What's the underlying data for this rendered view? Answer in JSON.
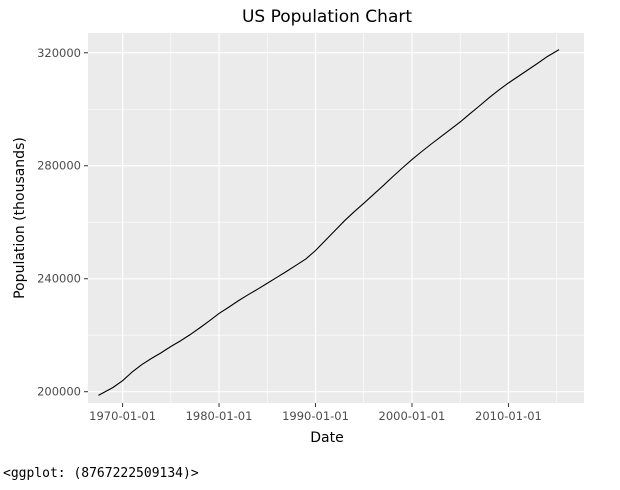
{
  "chart_data": {
    "type": "line",
    "title": "US Population Chart",
    "xlabel": "Date",
    "ylabel": "Population (thousands)",
    "x_tick_labels": [
      "1970-01-01",
      "1980-01-01",
      "1990-01-01",
      "2000-01-01",
      "2010-01-01"
    ],
    "y_tick_labels": [
      "200000",
      "240000",
      "280000",
      "320000"
    ],
    "xlim": [
      "1966-06-01",
      "2017-11-01"
    ],
    "ylim": [
      196000,
      327000
    ],
    "grid": true,
    "colors": {
      "panel": "#EBEBEB",
      "grid_major": "#FFFFFF",
      "line": "#000000",
      "tick_text": "#4D4D4D",
      "tick_mark": "#333333"
    },
    "series": [
      {
        "x": [
          "1967-07-01",
          "1969-01-01",
          "1970-01-01",
          "1971-01-01",
          "1972-01-01",
          "1973-01-01",
          "1974-01-01",
          "1975-01-01",
          "1976-01-01",
          "1977-01-01",
          "1978-01-01",
          "1979-01-01",
          "1980-01-01",
          "1981-01-01",
          "1982-01-01",
          "1983-01-01",
          "1984-01-01",
          "1985-01-01",
          "1986-01-01",
          "1987-01-01",
          "1988-01-01",
          "1989-01-01",
          "1990-01-01",
          "1991-01-01",
          "1992-01-01",
          "1993-01-01",
          "1994-01-01",
          "1995-01-01",
          "1996-01-01",
          "1997-01-01",
          "1998-01-01",
          "1999-01-01",
          "2000-01-01",
          "2001-01-01",
          "2002-01-01",
          "2003-01-01",
          "2004-01-01",
          "2005-01-01",
          "2006-01-01",
          "2007-01-01",
          "2008-01-01",
          "2009-01-01",
          "2010-01-01",
          "2011-01-01",
          "2012-01-01",
          "2013-01-01",
          "2014-01-01",
          "2015-04-01"
        ],
        "y": [
          198700,
          201500,
          203900,
          207000,
          209600,
          211800,
          213800,
          216000,
          218000,
          220200,
          222600,
          225100,
          227700,
          229900,
          232200,
          234300,
          236300,
          238400,
          240500,
          242600,
          244800,
          247000,
          250000,
          253500,
          257000,
          260500,
          263700,
          266700,
          269800,
          272900,
          276100,
          279200,
          282200,
          285000,
          287700,
          290300,
          292900,
          295500,
          298400,
          301200,
          304100,
          306800,
          309300,
          311600,
          313900,
          316200,
          318600,
          321100
        ]
      }
    ]
  },
  "output_text": "<ggplot: (8767222509134)>"
}
